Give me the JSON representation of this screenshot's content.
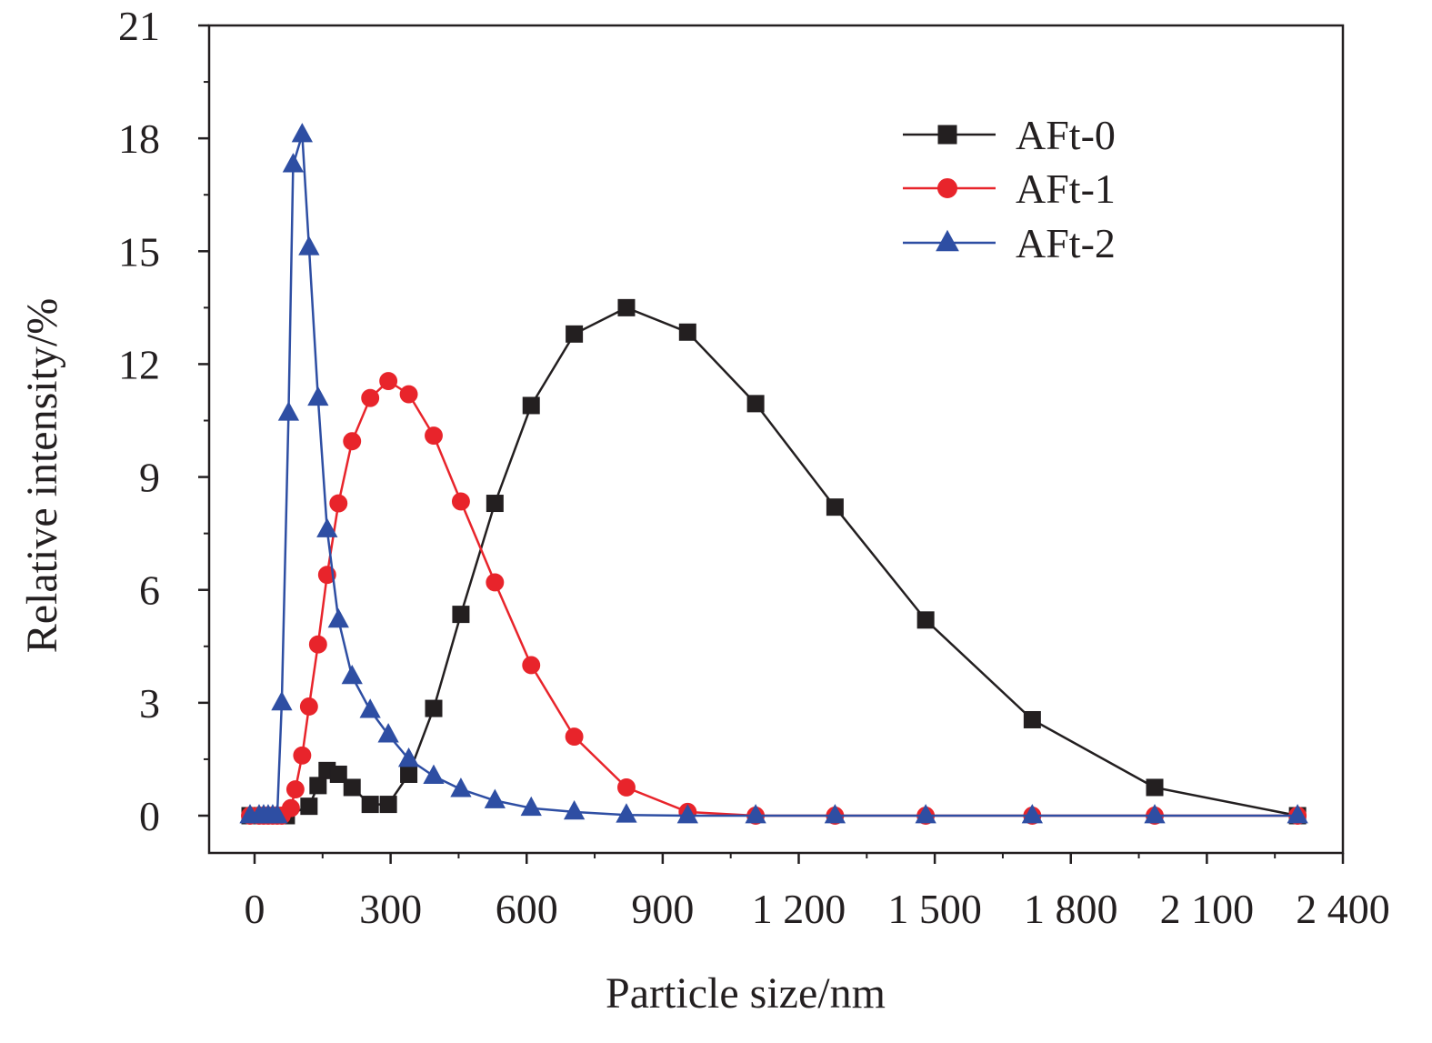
{
  "chart_data": {
    "type": "line",
    "title": "",
    "xlabel": "Particle size/nm",
    "ylabel": "Relative intensity/%",
    "xlim": [
      -100,
      2400
    ],
    "ylim": [
      -1,
      21
    ],
    "x_ticks": [
      0,
      300,
      600,
      900,
      1200,
      1500,
      1800,
      2100,
      2400
    ],
    "x_tick_labels": [
      "0",
      "300",
      "600",
      "900",
      "1 200",
      "1 500",
      "1 800",
      "2 100",
      "2 400"
    ],
    "y_ticks": [
      0,
      3,
      6,
      9,
      12,
      15,
      18,
      21
    ],
    "y_tick_labels": [
      "0",
      "3",
      "6",
      "9",
      "12",
      "15",
      "18",
      "21"
    ],
    "grid": false,
    "legend_position": "top-right",
    "series": [
      {
        "name": "AFt-0",
        "color": "#231f20",
        "marker": "square",
        "points": [
          [
            -10,
            0
          ],
          [
            10,
            0
          ],
          [
            20,
            0
          ],
          [
            30,
            0
          ],
          [
            40,
            0
          ],
          [
            50,
            0
          ],
          [
            60,
            0
          ],
          [
            70,
            0
          ],
          [
            120,
            0.25
          ],
          [
            140,
            0.8
          ],
          [
            160,
            1.2
          ],
          [
            185,
            1.1
          ],
          [
            215,
            0.75
          ],
          [
            255,
            0.3
          ],
          [
            295,
            0.3
          ],
          [
            340,
            1.1
          ],
          [
            395,
            2.85
          ],
          [
            455,
            5.35
          ],
          [
            530,
            8.3
          ],
          [
            610,
            10.9
          ],
          [
            705,
            12.8
          ],
          [
            820,
            13.5
          ],
          [
            955,
            12.85
          ],
          [
            1105,
            10.95
          ],
          [
            1280,
            8.2
          ],
          [
            1480,
            5.2
          ],
          [
            1715,
            2.55
          ],
          [
            1985,
            0.75
          ],
          [
            2300,
            0
          ]
        ]
      },
      {
        "name": "AFt-1",
        "color": "#e8242b",
        "marker": "circle",
        "points": [
          [
            -10,
            0
          ],
          [
            10,
            0
          ],
          [
            20,
            0
          ],
          [
            30,
            0
          ],
          [
            40,
            0
          ],
          [
            50,
            0
          ],
          [
            60,
            0
          ],
          [
            80,
            0.2
          ],
          [
            90,
            0.7
          ],
          [
            105,
            1.6
          ],
          [
            120,
            2.9
          ],
          [
            140,
            4.55
          ],
          [
            160,
            6.4
          ],
          [
            185,
            8.3
          ],
          [
            215,
            9.95
          ],
          [
            255,
            11.1
          ],
          [
            295,
            11.55
          ],
          [
            340,
            11.2
          ],
          [
            395,
            10.1
          ],
          [
            455,
            8.35
          ],
          [
            530,
            6.2
          ],
          [
            610,
            4.0
          ],
          [
            705,
            2.1
          ],
          [
            820,
            0.75
          ],
          [
            955,
            0.1
          ],
          [
            1105,
            0
          ],
          [
            1280,
            0
          ],
          [
            1480,
            0
          ],
          [
            1715,
            0
          ],
          [
            1985,
            0
          ],
          [
            2300,
            0
          ]
        ]
      },
      {
        "name": "AFt-2",
        "color": "#2e4ea3",
        "marker": "triangle",
        "points": [
          [
            -10,
            0
          ],
          [
            10,
            0
          ],
          [
            20,
            0
          ],
          [
            30,
            0
          ],
          [
            40,
            0
          ],
          [
            50,
            0
          ],
          [
            60,
            3.0
          ],
          [
            75,
            10.7
          ],
          [
            85,
            17.3
          ],
          [
            105,
            18.1
          ],
          [
            120,
            15.1
          ],
          [
            140,
            11.1
          ],
          [
            160,
            7.6
          ],
          [
            185,
            5.2
          ],
          [
            215,
            3.7
          ],
          [
            255,
            2.8
          ],
          [
            295,
            2.15
          ],
          [
            340,
            1.5
          ],
          [
            395,
            1.05
          ],
          [
            455,
            0.7
          ],
          [
            530,
            0.4
          ],
          [
            610,
            0.2
          ],
          [
            705,
            0.1
          ],
          [
            820,
            0.02
          ],
          [
            955,
            0
          ],
          [
            1105,
            0
          ],
          [
            1280,
            0
          ],
          [
            1480,
            0
          ],
          [
            1715,
            0
          ],
          [
            1985,
            0
          ],
          [
            2300,
            0
          ]
        ]
      }
    ]
  }
}
